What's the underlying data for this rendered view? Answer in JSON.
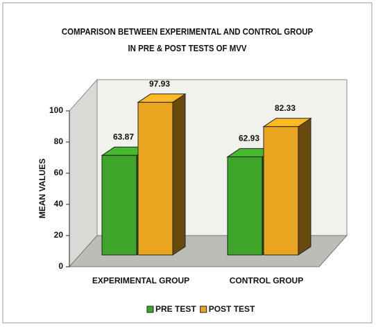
{
  "chart_data": {
    "type": "bar3d",
    "title": "COMPARISON BETWEEN EXPERIMENTAL AND CONTROL GROUP IN PRE & POST TESTS OF MVV",
    "y_label": "MEAN VALUES",
    "categories": [
      "EXPERIMENTAL GROUP",
      "CONTROL GROUP"
    ],
    "series": [
      {
        "name": "PRE TEST",
        "color": "#3fa52a",
        "values": [
          63.87,
          62.93
        ]
      },
      {
        "name": "POST TEST",
        "color": "#e9a520",
        "values": [
          97.93,
          82.33
        ]
      }
    ],
    "ylim": [
      0,
      100
    ],
    "yticks": [
      0,
      20,
      40,
      60,
      80,
      100
    ],
    "legend": "bottom"
  }
}
